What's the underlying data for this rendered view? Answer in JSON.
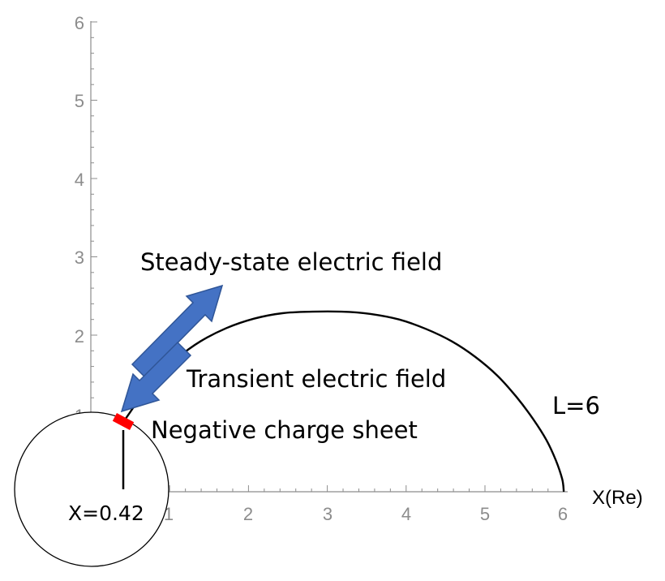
{
  "chart_data": {
    "type": "line",
    "title": "",
    "xlabel": "X(Re)",
    "ylabel": "",
    "xlim": [
      0,
      6
    ],
    "ylim": [
      0,
      6
    ],
    "x_ticks": [
      "1",
      "2",
      "3",
      "4",
      "5",
      "6"
    ],
    "y_ticks": [
      "1",
      "2",
      "3",
      "4",
      "5",
      "6"
    ],
    "grid": false,
    "series": [
      {
        "name": "L=6",
        "x": [
          0.42,
          0.62,
          0.84,
          1.1,
          1.39,
          1.72,
          2.07,
          2.43,
          2.81,
          3.18,
          3.55,
          3.91,
          4.25,
          4.58,
          4.88,
          5.16,
          5.4,
          5.61,
          5.78,
          5.9,
          5.98,
          6.0
        ],
        "y": [
          0.9,
          1.19,
          1.47,
          1.71,
          1.92,
          2.09,
          2.21,
          2.28,
          2.3,
          2.3,
          2.27,
          2.2,
          2.08,
          1.92,
          1.72,
          1.48,
          1.21,
          0.93,
          0.66,
          0.4,
          0.16,
          0.0
        ]
      }
    ]
  },
  "labels": {
    "steady_field": "Steady-state electric field",
    "transient_field": "Transient electric field",
    "charge_sheet": "Negative charge sheet",
    "field_line": "L=6",
    "x_position": "X=0.42"
  },
  "colors": {
    "arrow": "#4472c4",
    "arrow_edge": "#2f5597",
    "charge_sheet": "#ff0000",
    "axis": "#8c8c8c",
    "curve": "#000000"
  }
}
